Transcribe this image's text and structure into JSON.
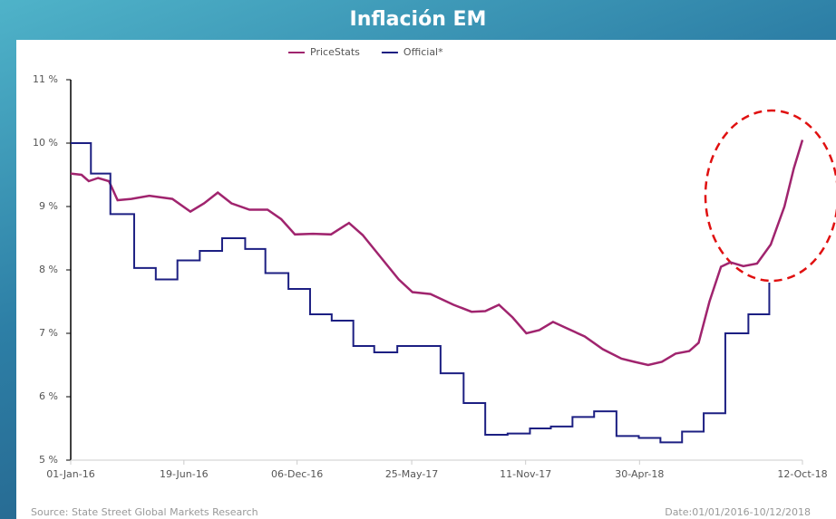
{
  "chart_data": {
    "type": "line",
    "title": "Inflación EM",
    "step_series": [
      "Official*"
    ],
    "xlim": [
      0,
      1015
    ],
    "xticks": [
      {
        "value": 0,
        "label": "01-Jan-16"
      },
      {
        "value": 157,
        "label": "19-Jun-16"
      },
      {
        "value": 314,
        "label": "06-Dec-16"
      },
      {
        "value": 473,
        "label": "25-May-17"
      },
      {
        "value": 631,
        "label": "11-Nov-17"
      },
      {
        "value": 789,
        "label": "30-Apr-18"
      },
      {
        "value": 1015,
        "label": "12-Oct-18"
      }
    ],
    "ylim": [
      5,
      11
    ],
    "yticks": [
      {
        "value": 5,
        "label": "5 %"
      },
      {
        "value": 6,
        "label": "6 %"
      },
      {
        "value": 7,
        "label": "7 %"
      },
      {
        "value": 8,
        "label": "8 %"
      },
      {
        "value": 9,
        "label": "9 %"
      },
      {
        "value": 10,
        "label": "10 %"
      },
      {
        "value": 11,
        "label": "11 %"
      }
    ],
    "grid": false,
    "legend": "top",
    "series": [
      {
        "name": "PriceStats",
        "color": "#a0246e",
        "x": [
          0,
          15,
          25,
          38,
          53,
          65,
          84,
          109,
          141,
          166,
          185,
          204,
          223,
          248,
          273,
          292,
          311,
          336,
          361,
          386,
          405,
          430,
          455,
          474,
          499,
          531,
          556,
          575,
          594,
          613,
          632,
          650,
          669,
          688,
          713,
          738,
          764,
          782,
          801,
          820,
          839,
          858,
          871,
          886,
          902,
          915,
          933,
          952,
          971,
          990,
          1003,
          1015
        ],
        "values": [
          9.52,
          9.5,
          9.4,
          9.45,
          9.4,
          9.1,
          9.12,
          9.17,
          9.12,
          8.92,
          9.05,
          9.22,
          9.05,
          8.95,
          8.95,
          8.8,
          8.56,
          8.57,
          8.56,
          8.74,
          8.55,
          8.2,
          7.85,
          7.65,
          7.62,
          7.45,
          7.34,
          7.35,
          7.45,
          7.25,
          7.0,
          7.05,
          7.18,
          7.08,
          6.95,
          6.75,
          6.6,
          6.55,
          6.5,
          6.55,
          6.68,
          6.72,
          6.85,
          7.5,
          8.05,
          8.12,
          8.06,
          8.1,
          8.4,
          9.0,
          9.6,
          10.05
        ]
      },
      {
        "name": "Official*",
        "color": "#1c1f82",
        "x": [
          0,
          28,
          55,
          88,
          118,
          148,
          179,
          210,
          242,
          270,
          302,
          332,
          362,
          392,
          421,
          453,
          513,
          545,
          575,
          606,
          637,
          666,
          696,
          726,
          757,
          788,
          818,
          848,
          878,
          908,
          940,
          969
        ],
        "values": [
          10.0,
          9.52,
          8.88,
          8.03,
          7.85,
          8.15,
          8.3,
          8.5,
          8.33,
          7.95,
          7.7,
          7.3,
          7.2,
          6.8,
          6.7,
          6.8,
          6.37,
          5.9,
          5.4,
          5.42,
          5.5,
          5.53,
          5.68,
          5.77,
          5.38,
          5.35,
          5.28,
          5.45,
          5.74,
          7.0,
          7.3,
          7.8
        ]
      }
    ],
    "source": "Source: State Street Global Markets Research",
    "date_note": "Date:01/01/2016-10/12/2018"
  }
}
